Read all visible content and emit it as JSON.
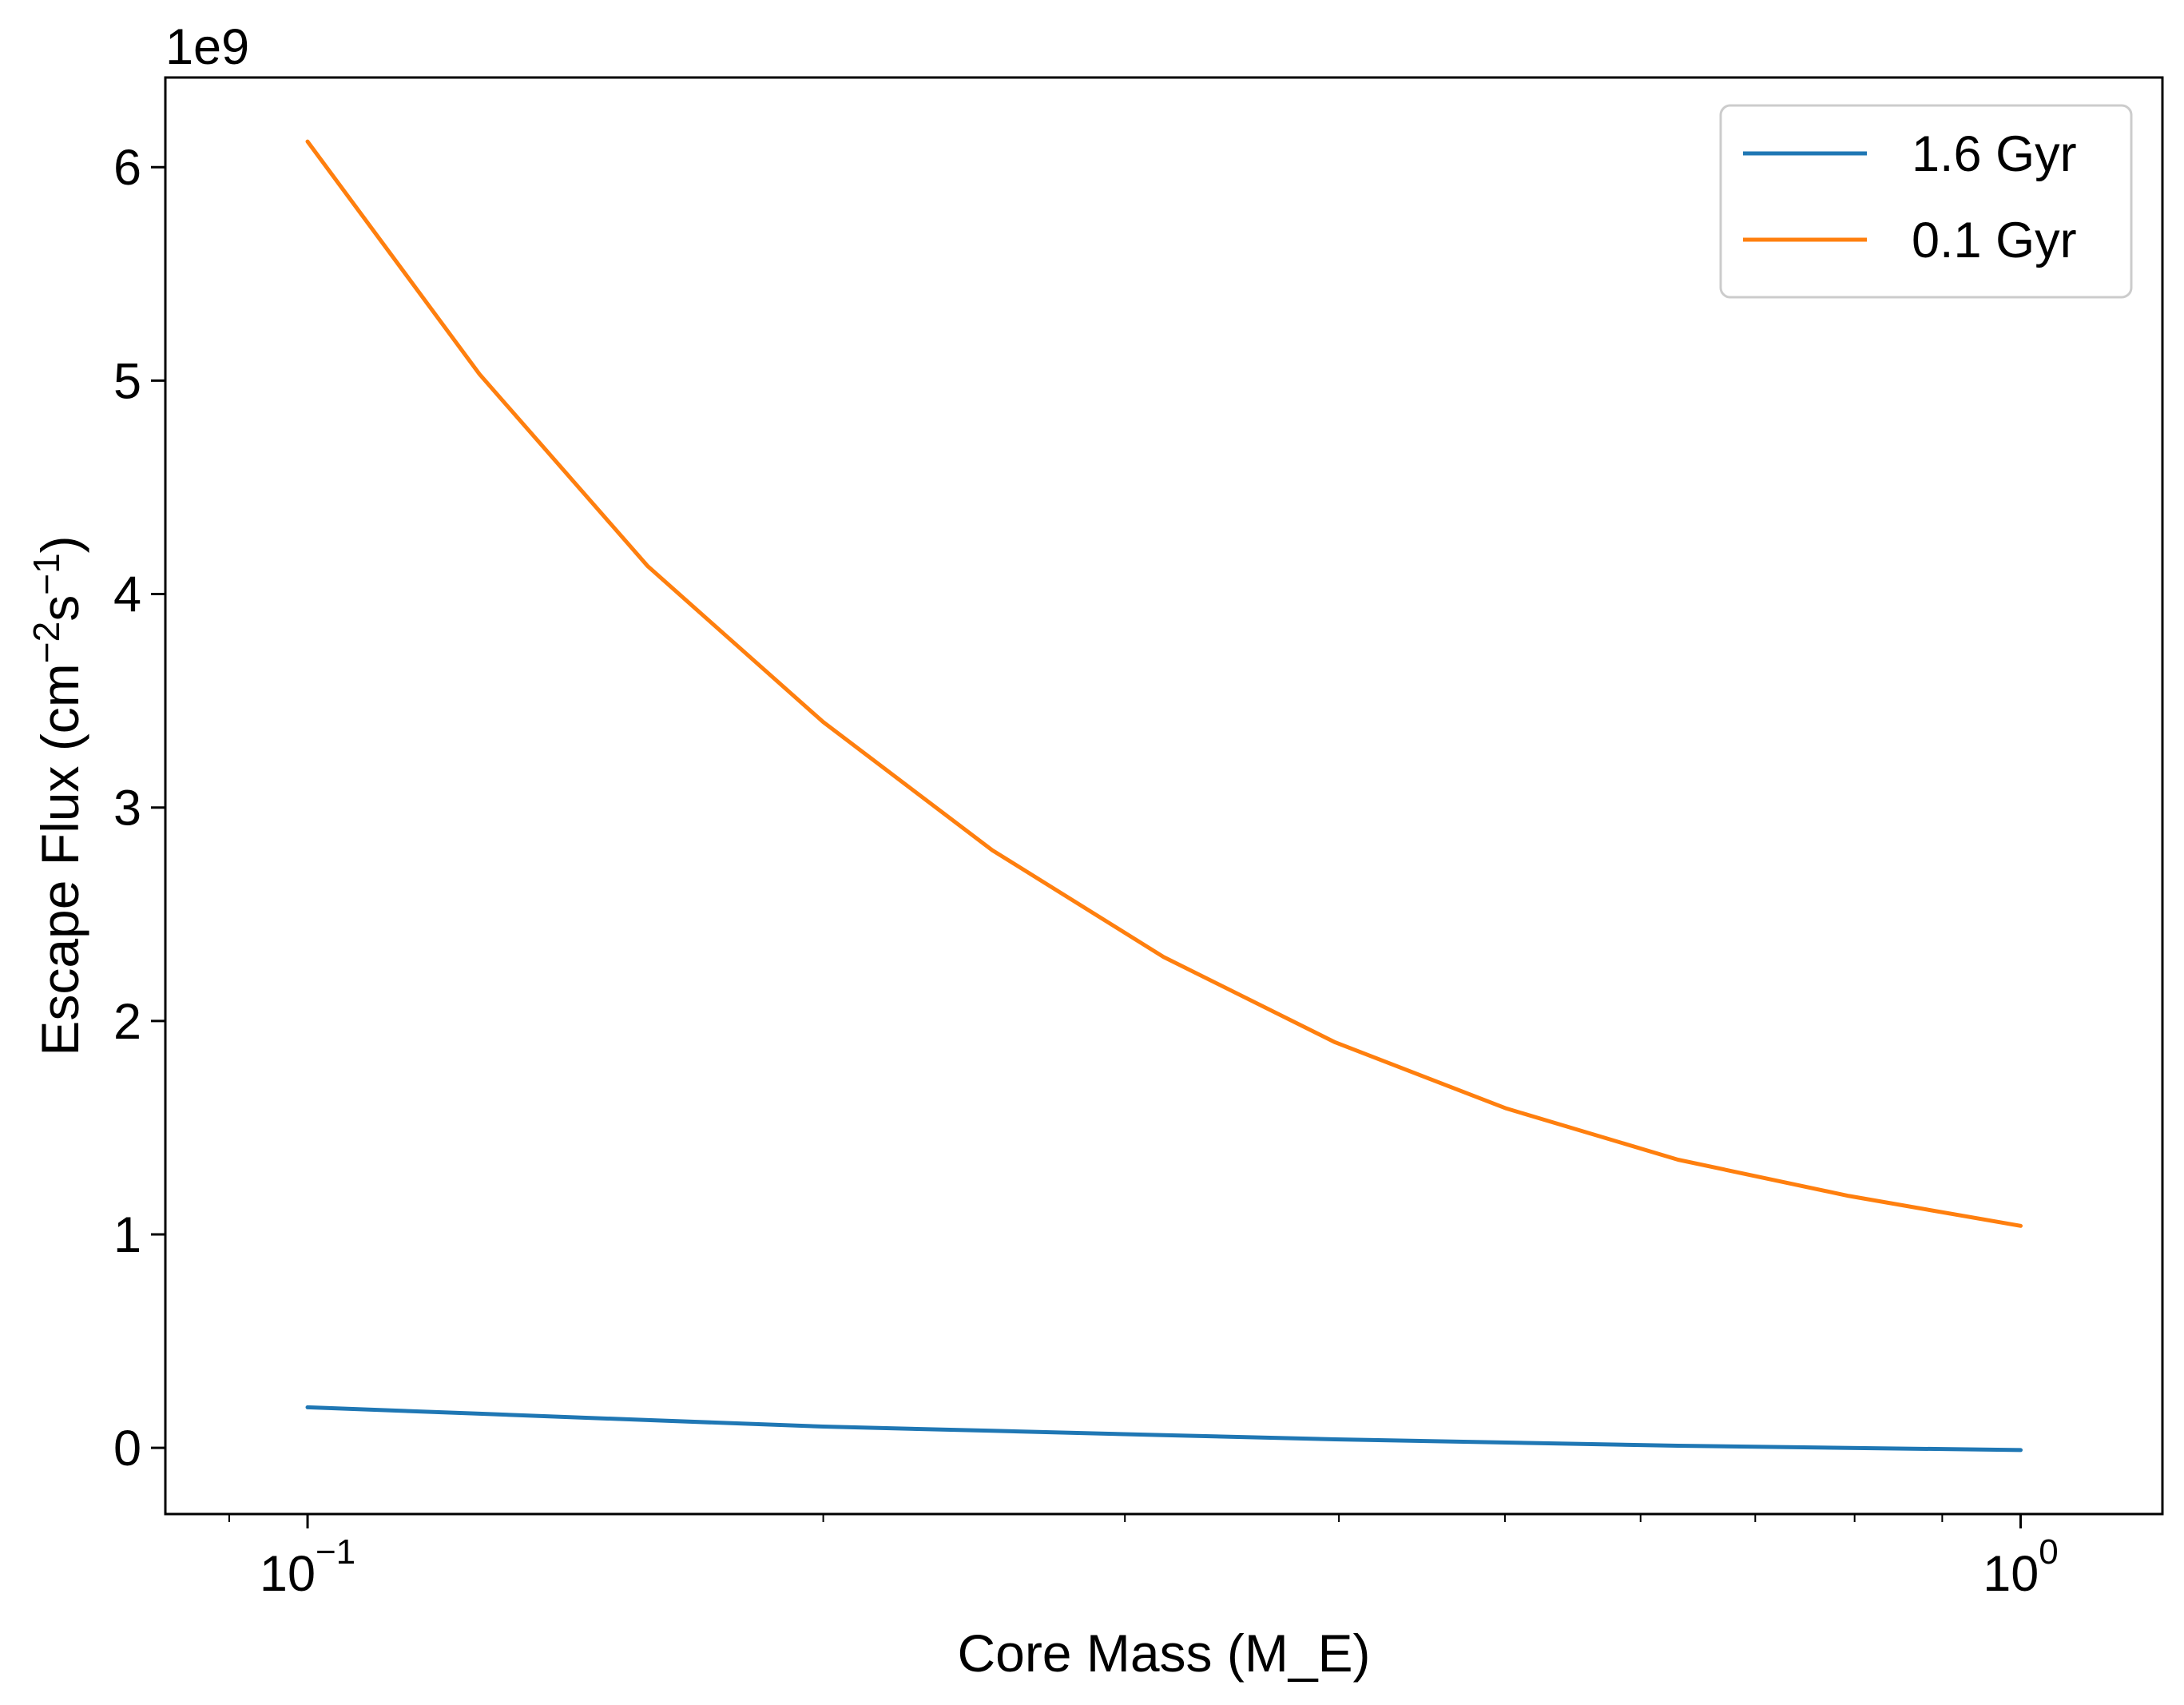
{
  "chart_data": {
    "type": "line",
    "xscale": "log",
    "xlim": [
      0.0826,
      1.21
    ],
    "ylim": [
      -0.31,
      6.42
    ],
    "y_offset_label": "1e9",
    "xlabel": "Core Mass (M_E)",
    "ylabel": {
      "prefix": "Escape Flux (cm",
      "sup1": "−2",
      "mid": "s",
      "sup2": "−1",
      "suffix": ")"
    },
    "x_ticks": [
      {
        "value": 0.1,
        "base": "10",
        "exp": "−1"
      },
      {
        "value": 1.0,
        "base": "10",
        "exp": "0"
      }
    ],
    "x_minor_ticks": [
      0.09,
      0.2,
      0.3,
      0.4,
      0.5,
      0.6,
      0.7,
      0.8,
      0.9
    ],
    "y_ticks": [
      {
        "value": 0,
        "label": "0"
      },
      {
        "value": 1,
        "label": "1"
      },
      {
        "value": 2,
        "label": "2"
      },
      {
        "value": 3,
        "label": "3"
      },
      {
        "value": 4,
        "label": "4"
      },
      {
        "value": 5,
        "label": "5"
      },
      {
        "value": 6,
        "label": "6"
      }
    ],
    "legend_position": "top-right",
    "series": [
      {
        "name": "1.6 Gyr",
        "color": "#1f77b4",
        "x": [
          0.1,
          0.126,
          0.158,
          0.2,
          0.251,
          0.316,
          0.398,
          0.501,
          0.631,
          0.794,
          1.0
        ],
        "y": [
          0.19,
          0.16,
          0.13,
          0.1,
          0.08,
          0.06,
          0.04,
          0.025,
          0.01,
          0.0,
          -0.01
        ]
      },
      {
        "name": "0.1 Gyr",
        "color": "#ff7f0e",
        "x": [
          0.1,
          0.126,
          0.158,
          0.2,
          0.251,
          0.316,
          0.398,
          0.501,
          0.631,
          0.794,
          1.0
        ],
        "y": [
          6.12,
          5.03,
          4.13,
          3.4,
          2.8,
          2.3,
          1.9,
          1.59,
          1.35,
          1.18,
          1.04
        ]
      }
    ]
  }
}
